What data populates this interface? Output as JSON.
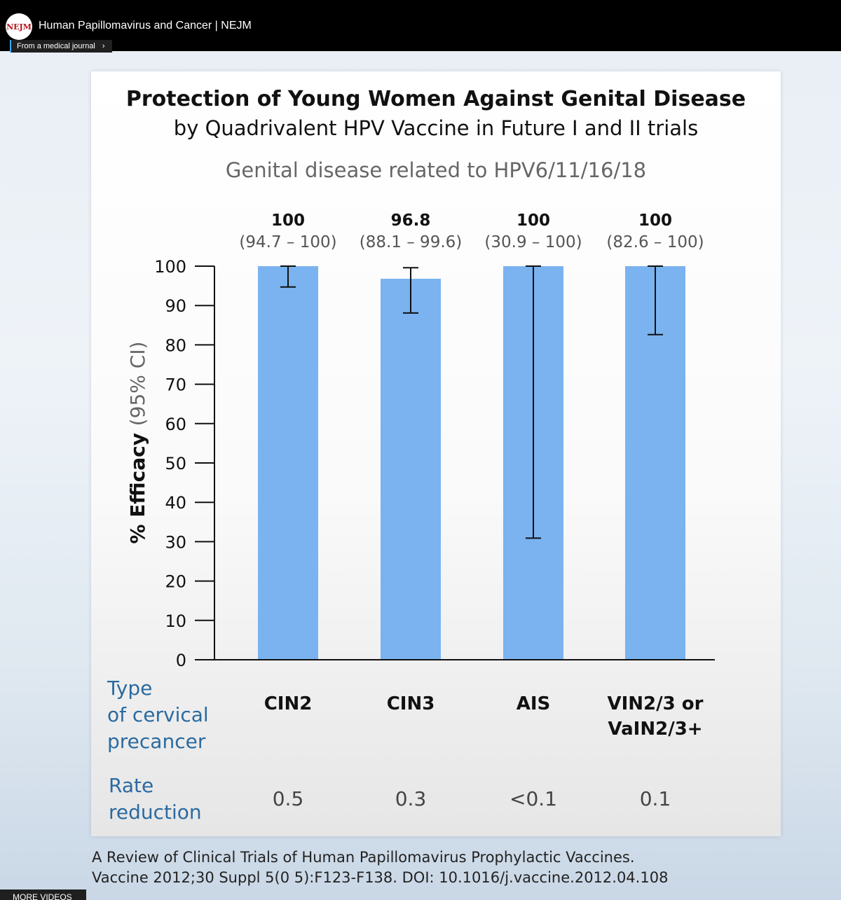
{
  "player": {
    "channel_logo": "NEJM",
    "title": "Human Papillomavirus and Cancer | NEJM",
    "source_chip": "From a medical journal",
    "source_chevron": "›",
    "more_videos": "MORE VIDEOS"
  },
  "slide": {
    "title_line1": "Protection of Young Women Against Genital Disease",
    "title_line2": "by Quadrivalent HPV Vaccine in Future I and II trials",
    "subtitle": "Genital disease related to HPV6/11/16/18",
    "type_label": [
      "Type",
      "of cervical",
      "precancer"
    ],
    "rate_label": [
      "Rate",
      "reduction"
    ]
  },
  "chart_data": {
    "type": "bar",
    "ylabel_bold": "% Efficacy",
    "ylabel_light": "(95% CI)",
    "ylim": [
      0,
      100
    ],
    "yticks": [
      0,
      10,
      20,
      30,
      40,
      50,
      60,
      70,
      80,
      90,
      100
    ],
    "categories": [
      [
        "CIN2"
      ],
      [
        "CIN3"
      ],
      [
        "AIS"
      ],
      [
        "VIN2/3 or",
        "VaIN2/3+"
      ]
    ],
    "values": [
      100,
      96.8,
      100,
      100
    ],
    "value_labels": [
      "100",
      "96.8",
      "100",
      "100"
    ],
    "ci_labels": [
      "(94.7 – 100)",
      "(88.1 – 99.6)",
      "(30.9 – 100)",
      "(82.6 – 100)"
    ],
    "ci": [
      [
        94.7,
        100
      ],
      [
        88.1,
        99.6
      ],
      [
        30.9,
        100
      ],
      [
        82.6,
        100
      ]
    ],
    "rate_reduction": [
      "0.5",
      "0.3",
      "<0.1",
      "0.1"
    ],
    "bar_color": "#7ab3f0",
    "grid": false
  },
  "citation": {
    "line1": "A Review of Clinical Trials of Human Papillomavirus Prophylactic Vaccines.",
    "line2": "Vaccine 2012;30 Suppl 5(0 5):F123-F138. DOI: 10.1016/j.vaccine.2012.04.108"
  }
}
